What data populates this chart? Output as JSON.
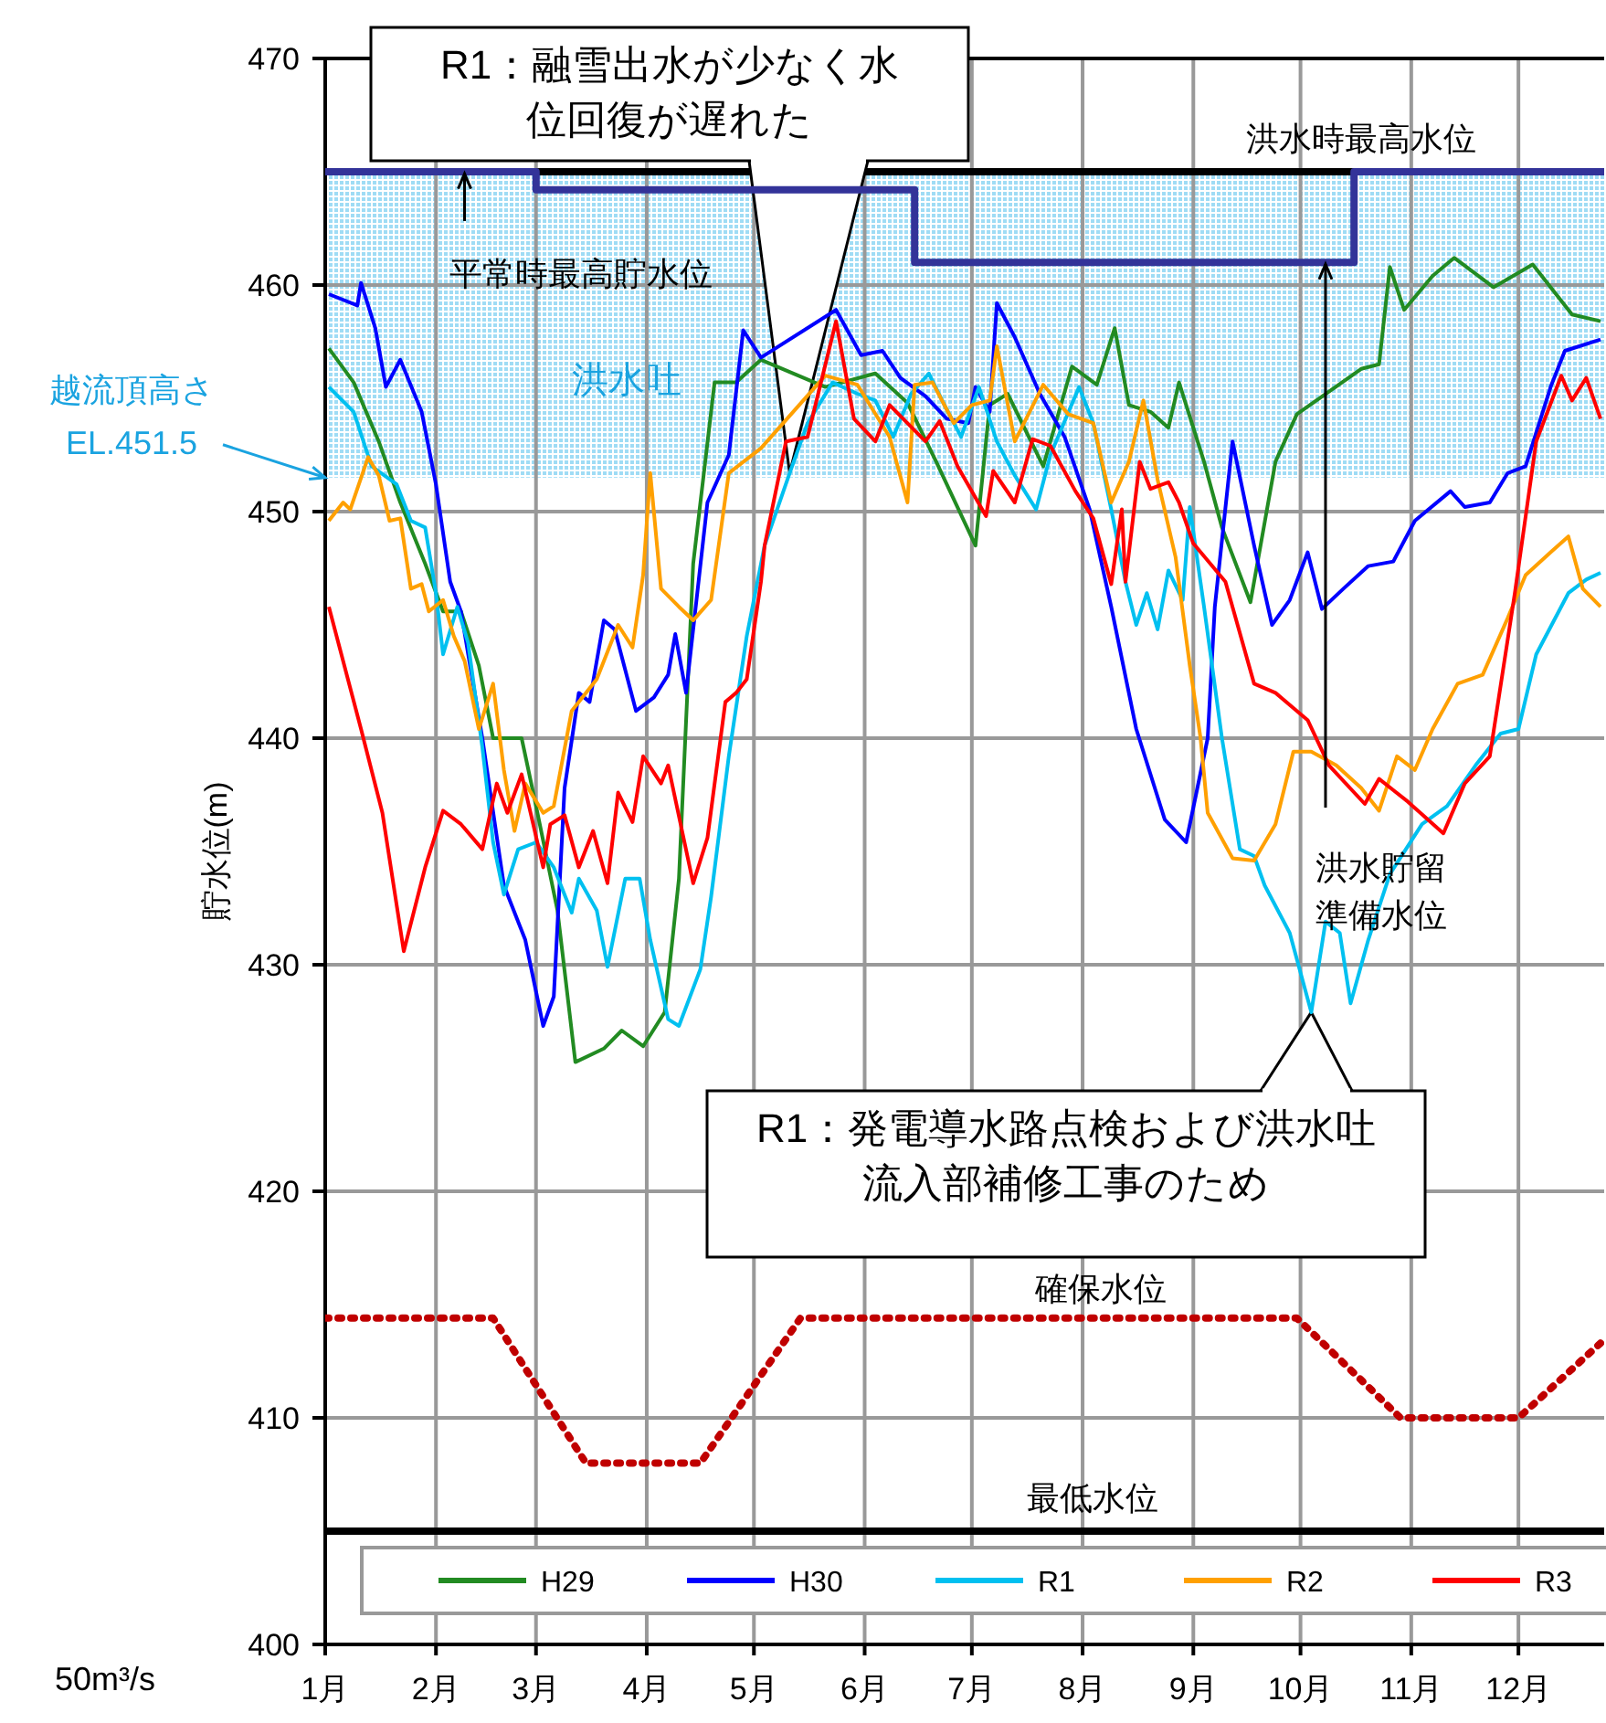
{
  "chart_data": {
    "type": "line",
    "ylabel": "貯水位(m)",
    "xlim": [
      "--01-01",
      "--12-25"
    ],
    "xticks": [
      {
        "value": "--01-01",
        "label": "1月"
      },
      {
        "value": "--02-01",
        "label": "2月"
      },
      {
        "value": "--03-01",
        "label": "3月"
      },
      {
        "value": "--04-01",
        "label": "4月"
      },
      {
        "value": "--05-01",
        "label": "5月"
      },
      {
        "value": "--06-01",
        "label": "6月"
      },
      {
        "value": "--07-01",
        "label": "7月"
      },
      {
        "value": "--08-01",
        "label": "8月"
      },
      {
        "value": "--09-01",
        "label": "9月"
      },
      {
        "value": "--10-01",
        "label": "10月"
      },
      {
        "value": "--11-01",
        "label": "11月"
      },
      {
        "value": "--12-01",
        "label": "12月"
      }
    ],
    "ylim": [
      400,
      470
    ],
    "yticks": [
      400,
      410,
      420,
      430,
      440,
      450,
      460,
      470
    ],
    "grid": true,
    "legend": "bottom",
    "line_style": "solid",
    "series": [
      {
        "type": "step",
        "color": "#333399",
        "x": [
          "--01-01",
          "--03-01",
          "--06-15",
          "--10-16",
          "--12-25"
        ],
        "values": [
          465,
          464.2,
          461,
          465,
          465
        ]
      },
      {
        "color": "#c00000",
        "line_style": "dotted",
        "x": [
          "--01-01",
          "--02-17",
          "--03-15",
          "--04-16",
          "--05-14",
          "--09-30",
          "--10-29",
          "--12-01",
          "--12-24"
        ],
        "values": [
          414.4,
          414.4,
          408,
          408,
          414.4,
          414.4,
          410,
          410,
          413.3
        ]
      },
      {
        "name": "H29",
        "color": "#228b22",
        "x": [
          "--01-02",
          "--01-09",
          "--01-16",
          "--01-22",
          "--01-29",
          "--02-03",
          "--02-08",
          "--02-13",
          "--02-17",
          "--02-25",
          "--03-01",
          "--03-07",
          "--03-12",
          "--03-20",
          "--03-25",
          "--03-31",
          "--04-06",
          "--04-10",
          "--04-14",
          "--04-20",
          "--04-26",
          "--05-03",
          "--05-21",
          "--06-04",
          "--06-13",
          "--06-21",
          "--07-02",
          "--07-06",
          "--07-11",
          "--07-21",
          "--07-29",
          "--08-05",
          "--08-10",
          "--08-14",
          "--08-20",
          "--08-25",
          "--08-28",
          "--09-04",
          "--09-09",
          "--09-17",
          "--09-24",
          "--09-30",
          "--10-09",
          "--10-18",
          "--10-23",
          "--10-26",
          "--10-30",
          "--11-07",
          "--11-13",
          "--11-24",
          "--12-05",
          "--12-16",
          "--12-24"
        ],
        "values": [
          457.2,
          455.7,
          453.1,
          450.4,
          447.7,
          445.6,
          445.6,
          443.2,
          440.0,
          440.0,
          437.0,
          432.4,
          425.7,
          426.3,
          427.1,
          426.4,
          427.9,
          433.8,
          447.7,
          455.7,
          455.7,
          456.7,
          455.5,
          456.1,
          454.8,
          452.2,
          448.5,
          454.7,
          455.2,
          452.0,
          456.4,
          455.6,
          458.1,
          454.7,
          454.4,
          453.7,
          455.7,
          452.2,
          449.3,
          446.0,
          452.2,
          454.3,
          455.3,
          456.3,
          456.5,
          460.8,
          458.9,
          460.4,
          461.2,
          459.9,
          460.9,
          458.7,
          458.4
        ]
      },
      {
        "name": "H30",
        "color": "#0000ff",
        "x": [
          "--01-02",
          "--01-10",
          "--01-11",
          "--01-15",
          "--01-18",
          "--01-22",
          "--01-28",
          "--02-01",
          "--02-05",
          "--02-08",
          "--02-14",
          "--02-20",
          "--02-26",
          "--03-03",
          "--03-06",
          "--03-09",
          "--03-13",
          "--03-16",
          "--03-20",
          "--03-23",
          "--03-29",
          "--04-03",
          "--04-07",
          "--04-09",
          "--04-12",
          "--04-18",
          "--04-24",
          "--04-28",
          "--05-03",
          "--05-24",
          "--05-31",
          "--06-06",
          "--06-11",
          "--06-18",
          "--06-24",
          "--06-30",
          "--07-02",
          "--07-06",
          "--07-08",
          "--07-13",
          "--07-20",
          "--07-27",
          "--08-03",
          "--08-09",
          "--08-16",
          "--08-24",
          "--08-30",
          "--09-05",
          "--09-07",
          "--09-12",
          "--09-18",
          "--09-23",
          "--09-28",
          "--10-03",
          "--10-07",
          "--10-13",
          "--10-20",
          "--10-27",
          "--11-02",
          "--11-12",
          "--11-16",
          "--11-23",
          "--11-28",
          "--12-03",
          "--12-10",
          "--12-14",
          "--12-24"
        ],
        "values": [
          459.6,
          459.1,
          460.1,
          458.1,
          455.5,
          456.7,
          454.4,
          451.2,
          446.9,
          445.6,
          440.0,
          433.5,
          431.1,
          427.3,
          428.6,
          437.8,
          442.0,
          441.6,
          445.2,
          444.8,
          441.2,
          441.8,
          442.8,
          444.6,
          442.0,
          450.4,
          452.5,
          458.0,
          456.8,
          458.9,
          456.9,
          457.1,
          455.9,
          455.1,
          454.1,
          453.9,
          455.5,
          454.4,
          459.2,
          457.7,
          455.2,
          453.3,
          450.1,
          445.8,
          440.4,
          436.4,
          435.4,
          440.0,
          445.8,
          453.1,
          448.5,
          445.0,
          446.1,
          448.2,
          445.7,
          446.6,
          447.6,
          447.8,
          449.6,
          450.9,
          450.2,
          450.4,
          451.7,
          452.0,
          455.5,
          457.1,
          457.6
        ]
      },
      {
        "name": "R1",
        "color": "#00c0f0",
        "x": [
          "--01-02",
          "--01-09",
          "--01-14",
          "--01-21",
          "--01-25",
          "--01-29",
          "--02-01",
          "--02-03",
          "--02-07",
          "--02-10",
          "--02-14",
          "--02-17",
          "--02-20",
          "--02-24",
          "--03-01",
          "--03-06",
          "--03-11",
          "--03-13",
          "--03-18",
          "--03-21",
          "--03-26",
          "--03-30",
          "--04-02",
          "--04-07",
          "--04-10",
          "--04-16",
          "--04-19",
          "--04-24",
          "--04-29",
          "--05-04",
          "--05-11",
          "--05-16",
          "--05-23",
          "--05-30",
          "--06-04",
          "--06-09",
          "--06-14",
          "--06-19",
          "--06-23",
          "--06-28",
          "--07-03",
          "--07-08",
          "--07-13",
          "--07-19",
          "--07-23",
          "--07-31",
          "--08-04",
          "--08-09",
          "--08-13",
          "--08-16",
          "--08-19",
          "--08-22",
          "--08-25",
          "--08-29",
          "--08-31",
          "--09-04",
          "--09-09",
          "--09-14",
          "--09-18",
          "--09-21",
          "--09-28",
          "--10-04",
          "--10-08",
          "--10-12",
          "--10-15",
          "--10-20",
          "--10-26",
          "--11-04",
          "--11-11",
          "--11-19",
          "--11-26",
          "--12-01",
          "--12-06",
          "--12-15",
          "--12-20",
          "--12-24"
        ],
        "values": [
          455.5,
          454.4,
          452.0,
          451.2,
          449.6,
          449.3,
          446.4,
          443.7,
          445.8,
          444.2,
          439.6,
          435.4,
          433.1,
          435.1,
          435.4,
          434.3,
          432.3,
          433.8,
          432.4,
          429.9,
          433.8,
          433.8,
          431.1,
          427.6,
          427.3,
          429.8,
          433.0,
          439.2,
          444.5,
          448.5,
          451.7,
          453.9,
          455.7,
          455.2,
          454.9,
          453.3,
          455.2,
          456.1,
          454.8,
          453.3,
          455.5,
          453.1,
          451.6,
          450.1,
          452.5,
          455.5,
          453.9,
          450.1,
          446.9,
          445.0,
          446.4,
          444.8,
          447.4,
          446.1,
          450.2,
          445.8,
          440.0,
          435.1,
          434.8,
          433.5,
          431.4,
          427.9,
          431.9,
          431.4,
          428.3,
          431.1,
          434.0,
          436.2,
          437.0,
          438.8,
          440.2,
          440.4,
          443.7,
          446.4,
          447.0,
          447.3
        ]
      },
      {
        "name": "R2",
        "color": "#ffa000",
        "x": [
          "--01-02",
          "--01-06",
          "--01-08",
          "--01-13",
          "--01-16",
          "--01-19",
          "--01-22",
          "--01-25",
          "--01-28",
          "--01-30",
          "--02-03",
          "--02-06",
          "--02-09",
          "--02-13",
          "--02-17",
          "--02-20",
          "--02-23",
          "--02-26",
          "--03-03",
          "--03-06",
          "--03-11",
          "--03-18",
          "--03-24",
          "--03-28",
          "--03-31",
          "--04-02",
          "--04-05",
          "--04-10",
          "--04-14",
          "--04-19",
          "--04-24",
          "--05-03",
          "--05-21",
          "--05-30",
          "--06-08",
          "--06-13",
          "--06-15",
          "--06-20",
          "--06-26",
          "--07-01",
          "--07-06",
          "--07-08",
          "--07-13",
          "--07-21",
          "--07-28",
          "--08-04",
          "--08-09",
          "--08-14",
          "--08-18",
          "--08-22",
          "--08-27",
          "--08-31",
          "--09-03",
          "--09-05",
          "--09-12",
          "--09-18",
          "--09-24",
          "--09-29",
          "--10-04",
          "--10-11",
          "--10-18",
          "--10-23",
          "--10-28",
          "--11-02",
          "--11-07",
          "--11-14",
          "--11-21",
          "--11-28",
          "--12-03",
          "--12-10",
          "--12-15",
          "--12-19",
          "--12-24"
        ],
        "values": [
          449.6,
          450.4,
          450.1,
          452.4,
          451.6,
          449.6,
          449.7,
          446.6,
          446.8,
          445.6,
          446.1,
          444.5,
          443.4,
          440.4,
          442.4,
          438.6,
          435.9,
          438.0,
          436.7,
          437.0,
          441.2,
          442.6,
          445.0,
          444.0,
          447.2,
          451.7,
          446.6,
          445.8,
          445.2,
          446.1,
          451.7,
          452.8,
          456.0,
          455.6,
          453.3,
          450.4,
          455.6,
          455.7,
          453.9,
          454.7,
          454.9,
          457.3,
          453.1,
          455.6,
          454.3,
          453.9,
          450.4,
          452.2,
          454.9,
          451.4,
          448.0,
          443.2,
          440.0,
          436.7,
          434.7,
          434.6,
          436.2,
          439.4,
          439.4,
          438.8,
          437.8,
          436.8,
          439.2,
          438.6,
          440.4,
          442.4,
          442.8,
          445.3,
          447.2,
          448.2,
          448.9,
          446.6,
          445.8
        ]
      },
      {
        "name": "R3",
        "color": "#ff0000",
        "x": [
          "--01-02",
          "--01-11",
          "--01-17",
          "--01-23",
          "--01-29",
          "--02-03",
          "--02-08",
          "--02-14",
          "--02-18",
          "--02-21",
          "--02-25",
          "--03-03",
          "--03-05",
          "--03-09",
          "--03-13",
          "--03-17",
          "--03-21",
          "--03-24",
          "--03-28",
          "--03-31",
          "--04-05",
          "--04-07",
          "--04-14",
          "--04-18",
          "--04-21",
          "--04-23",
          "--04-26",
          "--04-29",
          "--05-03",
          "--05-04",
          "--05-10",
          "--05-16",
          "--05-24",
          "--05-29",
          "--06-04",
          "--06-08",
          "--06-18",
          "--06-22",
          "--06-27",
          "--07-05",
          "--07-07",
          "--07-13",
          "--07-18",
          "--07-23",
          "--07-30",
          "--08-04",
          "--08-09",
          "--08-12",
          "--08-13",
          "--08-17",
          "--08-20",
          "--08-25",
          "--08-28",
          "--09-01",
          "--09-10",
          "--09-18",
          "--09-24",
          "--10-03",
          "--10-09",
          "--10-19",
          "--10-23",
          "--10-31",
          "--11-10",
          "--11-16",
          "--11-23",
          "--11-30",
          "--12-06",
          "--12-13",
          "--12-16",
          "--12-20",
          "--12-24"
        ],
        "values": [
          445.8,
          440.4,
          436.7,
          430.6,
          434.3,
          436.8,
          436.2,
          435.1,
          438.0,
          436.7,
          438.4,
          434.3,
          436.2,
          436.6,
          434.3,
          435.9,
          433.6,
          437.6,
          436.3,
          439.2,
          438.0,
          438.8,
          433.6,
          435.6,
          439.2,
          441.6,
          442.0,
          442.6,
          446.9,
          448.5,
          453.1,
          453.3,
          458.4,
          454.1,
          453.1,
          454.7,
          453.1,
          454.0,
          452.0,
          449.8,
          451.8,
          450.4,
          453.2,
          452.9,
          450.9,
          449.7,
          446.8,
          450.1,
          446.9,
          452.2,
          451.0,
          451.3,
          450.4,
          448.6,
          446.9,
          442.4,
          442.0,
          440.8,
          438.8,
          437.1,
          438.2,
          437.2,
          435.8,
          438.0,
          439.2,
          446.4,
          453.1,
          456.0,
          454.9,
          455.9,
          454.1
        ]
      }
    ],
    "ref_lines": [
      {
        "axis": "y",
        "value": 465,
        "label": "洪水時最高水位",
        "color": "#000000"
      },
      {
        "axis": "y",
        "value": 405,
        "label": "最低水位",
        "color": "#000000"
      }
    ],
    "bands": [
      {
        "axis": "y",
        "from": 451.5,
        "to": 465,
        "label": "洪水吐",
        "color": "#9fdcf5"
      }
    ],
    "annotations": [
      {
        "text": "R1：融雪出水が少なく水位回復が遅れた",
        "x": "--05-11",
        "y": 451.7
      },
      {
        "text": "R1：発電導水路点検および洪水吐流入部補修工事のため",
        "x": "--10-04",
        "y": 427.9
      },
      {
        "text": "平常時最高貯水位",
        "x": "--02-09",
        "y": 465
      },
      {
        "text": "洪水貯留準備水位",
        "x": "--10-08",
        "y": 461
      },
      {
        "text": "確保水位",
        "x": "--08-01",
        "y": 414.4
      },
      {
        "text": "越流頂高さ EL.451.5",
        "x": "--01-01",
        "y": 451.5
      },
      "50m³/s"
    ]
  }
}
